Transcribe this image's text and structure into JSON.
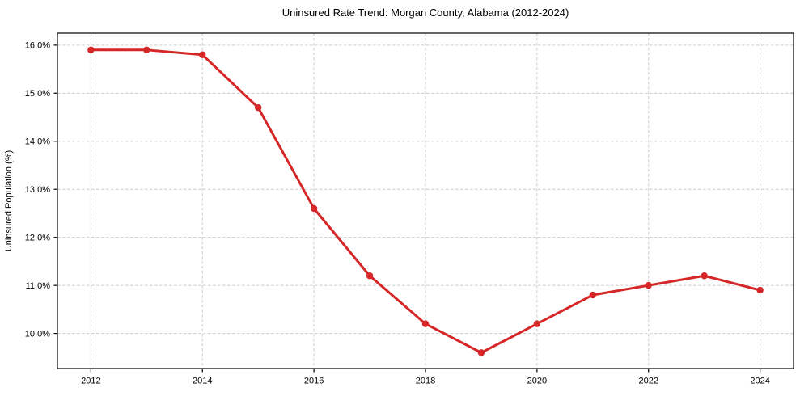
{
  "chart_data": {
    "type": "line",
    "title": "Uninsured Rate Trend: Morgan County, Alabama (2012-2024)",
    "xlabel": "",
    "ylabel": "Uninsured Population (%)",
    "x": [
      2012,
      2013,
      2014,
      2015,
      2016,
      2017,
      2018,
      2019,
      2020,
      2021,
      2022,
      2023,
      2024
    ],
    "values": [
      15.9,
      15.9,
      15.8,
      14.7,
      12.6,
      11.2,
      10.2,
      9.6,
      10.2,
      10.8,
      11.0,
      11.2,
      10.9
    ],
    "xlim": [
      2011.4,
      2024.6
    ],
    "ylim": [
      9.27,
      16.25
    ],
    "xticks": [
      2012,
      2014,
      2016,
      2018,
      2020,
      2022,
      2024
    ],
    "xtick_labels": [
      "2012",
      "2014",
      "2016",
      "2018",
      "2020",
      "2022",
      "2024"
    ],
    "yticks": [
      10,
      11,
      12,
      13,
      14,
      15,
      16
    ],
    "ytick_labels": [
      "10.0%",
      "11.0%",
      "12.0%",
      "13.0%",
      "14.0%",
      "15.0%",
      "16.0%"
    ],
    "grid": true,
    "legend": false,
    "line_color": "#d62728",
    "marker": "circle",
    "grid_color": "#cccccc",
    "axis_color": "#000000",
    "text_color": "#000000",
    "background_color": "#ffffff"
  }
}
